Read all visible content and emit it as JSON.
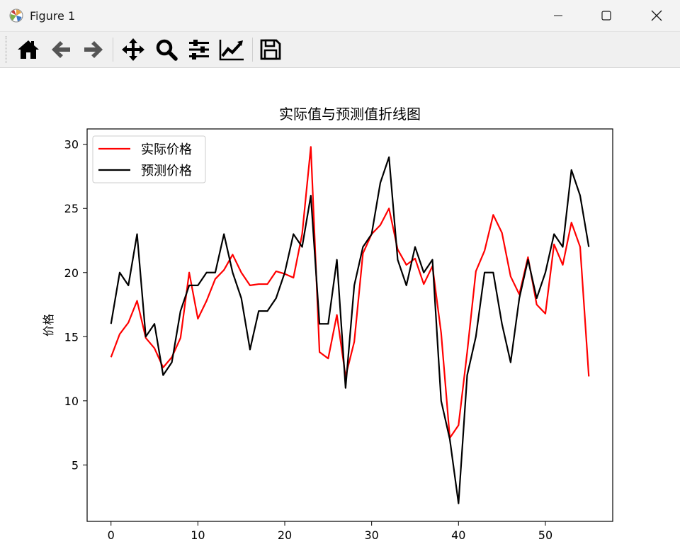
{
  "window": {
    "title": "Figure 1",
    "icons": [
      "matplotlib-logo-icon",
      "minimize-icon",
      "maximize-icon",
      "close-icon"
    ]
  },
  "toolbar": {
    "buttons": [
      {
        "name": "home-button",
        "icon": "home-icon"
      },
      {
        "name": "back-button",
        "icon": "arrow-left-icon"
      },
      {
        "name": "forward-button",
        "icon": "arrow-right-icon"
      },
      {
        "name": "pan-button",
        "icon": "move-icon"
      },
      {
        "name": "zoom-button",
        "icon": "zoom-icon"
      },
      {
        "name": "subplots-button",
        "icon": "sliders-icon"
      },
      {
        "name": "edit-axis-button",
        "icon": "line-chart-icon"
      },
      {
        "name": "save-button",
        "icon": "save-icon"
      }
    ]
  },
  "chart_data": {
    "type": "line",
    "title": "实际值与预测值折线图",
    "xlabel": "",
    "ylabel": "价格",
    "xlim": [
      -2.75,
      57.75
    ],
    "ylim": [
      0.6,
      31.2
    ],
    "xticks": [
      0,
      10,
      20,
      30,
      40,
      50
    ],
    "yticks": [
      5,
      10,
      15,
      20,
      25,
      30
    ],
    "grid": false,
    "legend": "upper left",
    "series": [
      {
        "name": "实际价格",
        "color": "#ff0000",
        "values": [
          13.4,
          15.2,
          16.1,
          17.8,
          14.9,
          14.1,
          12.6,
          13.4,
          14.9,
          20.0,
          16.4,
          17.8,
          19.5,
          20.2,
          21.4,
          20.0,
          19.0,
          19.1,
          19.1,
          20.1,
          19.9,
          19.6,
          23.0,
          29.8,
          13.8,
          13.3,
          16.7,
          11.9,
          14.6,
          21.5,
          23.0,
          23.7,
          25.0,
          21.8,
          20.6,
          21.1,
          19.1,
          20.5,
          15.3,
          7.1,
          8.1,
          13.8,
          20.1,
          21.7,
          24.5,
          23.1,
          19.7,
          18.3,
          21.2,
          17.5,
          16.8,
          22.2,
          20.6,
          23.9,
          22.0,
          11.9
        ]
      },
      {
        "name": "预测价格",
        "color": "#000000",
        "values": [
          16,
          20,
          19,
          23,
          15,
          16,
          12,
          13,
          17,
          19,
          19,
          20,
          20,
          23,
          20,
          18,
          14,
          17,
          17,
          18,
          20,
          23,
          22,
          26,
          16,
          16,
          21,
          11,
          19,
          22,
          23,
          27,
          29,
          21,
          19,
          22,
          20,
          21,
          10,
          7,
          2,
          12,
          15,
          20,
          20,
          16,
          13,
          18,
          21,
          18,
          20,
          23,
          22,
          28,
          26,
          22
        ]
      }
    ]
  }
}
